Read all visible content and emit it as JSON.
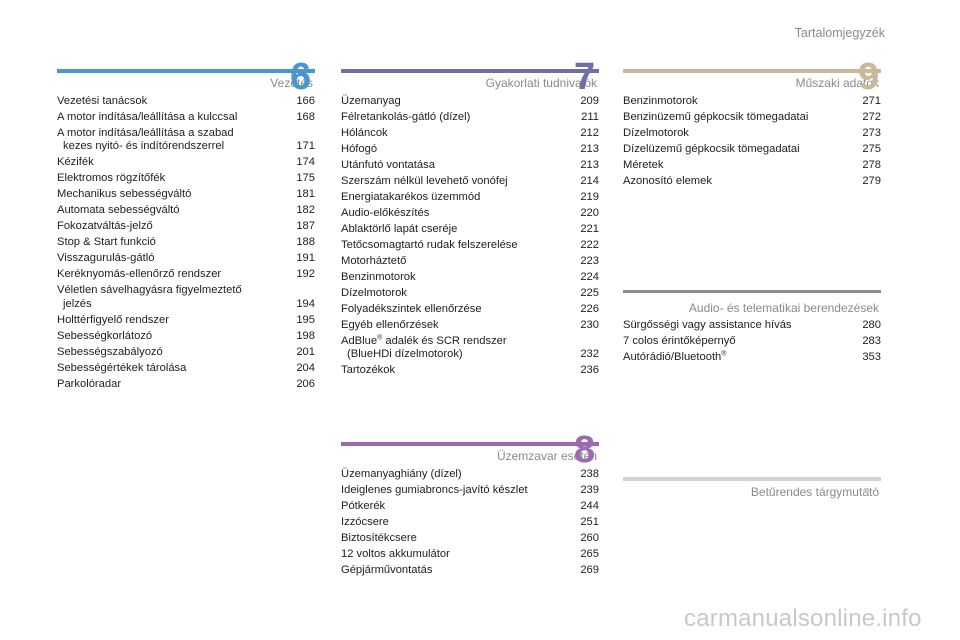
{
  "header": {
    "title": "Tartalomjegyzék"
  },
  "sections": {
    "s6": {
      "title": "Vezetés",
      "number": "6",
      "color": "#4a97cf",
      "items": [
        {
          "lines": [
            "Vezetési tanácsok"
          ],
          "page": "166"
        },
        {
          "lines": [
            "A motor indítása/leállítása a kulccsal"
          ],
          "page": "168"
        },
        {
          "lines": [
            "A motor indítása/leállítása a szabad",
            "kezes nyitó- és indítórendszerrel"
          ],
          "page": "171"
        },
        {
          "lines": [
            "Kézifék"
          ],
          "page": "174"
        },
        {
          "lines": [
            "Elektromos rögzítőfék"
          ],
          "page": "175"
        },
        {
          "lines": [
            "Mechanikus sebességváltó"
          ],
          "page": "181"
        },
        {
          "lines": [
            "Automata sebességváltó"
          ],
          "page": "182"
        },
        {
          "lines": [
            "Fokozatváltás-jelző"
          ],
          "page": "187"
        },
        {
          "lines": [
            "Stop & Start funkció"
          ],
          "page": "188"
        },
        {
          "lines": [
            "Visszagurulás-gátló"
          ],
          "page": "191"
        },
        {
          "lines": [
            "Keréknyomás-ellenőrző rendszer"
          ],
          "page": "192"
        },
        {
          "lines": [
            "Véletlen sávelhagyásra figyelmeztető",
            "jelzés"
          ],
          "page": "194"
        },
        {
          "lines": [
            "Holttérfigyelő rendszer"
          ],
          "page": "195"
        },
        {
          "lines": [
            "Sebességkorlátozó"
          ],
          "page": "198"
        },
        {
          "lines": [
            "Sebességszabályozó"
          ],
          "page": "201"
        },
        {
          "lines": [
            "Sebességértékek tárolása"
          ],
          "page": "204"
        },
        {
          "lines": [
            "Parkolóradar"
          ],
          "page": "206"
        }
      ]
    },
    "s7": {
      "title": "Gyakorlati tudnivalók",
      "number": "7",
      "color": "#6e6ea8",
      "items": [
        {
          "lines": [
            "Üzemanyag"
          ],
          "page": "209"
        },
        {
          "lines": [
            "Félretankolás-gátló (dízel)"
          ],
          "page": "211"
        },
        {
          "lines": [
            "Hóláncok"
          ],
          "page": "212"
        },
        {
          "lines": [
            "Hófogó"
          ],
          "page": "213"
        },
        {
          "lines": [
            "Utánfutó vontatása"
          ],
          "page": "213"
        },
        {
          "lines": [
            "Szerszám nélkül levehető vonófej"
          ],
          "page": "214"
        },
        {
          "lines": [
            "Energiatakarékos üzemmód"
          ],
          "page": "219"
        },
        {
          "lines": [
            "Audio-előkészítés"
          ],
          "page": "220"
        },
        {
          "lines": [
            "Ablaktörlő lapát cseréje"
          ],
          "page": "221"
        },
        {
          "lines": [
            "Tetőcsomagtartó rudak felszerelése"
          ],
          "page": "222"
        },
        {
          "lines": [
            "Motorháztető"
          ],
          "page": "223"
        },
        {
          "lines": [
            "Benzinmotorok"
          ],
          "page": "224"
        },
        {
          "lines": [
            "Dízelmotorok"
          ],
          "page": "225"
        },
        {
          "lines": [
            "Folyadékszintek ellenőrzése"
          ],
          "page": "226"
        },
        {
          "lines": [
            "Egyéb ellenőrzések"
          ],
          "page": "230"
        },
        {
          "lines": [
            "AdBlue",
            " adalék és SCR rendszer",
            "(BlueHDi dízelmotorok)"
          ],
          "sup": "®",
          "page": "232"
        },
        {
          "lines": [
            "Tartozékok"
          ],
          "page": "236"
        }
      ]
    },
    "s8": {
      "title": "Üzemzavar esetén",
      "number": "8",
      "color": "#9a6bb0",
      "items": [
        {
          "lines": [
            "Üzemanyaghiány (dízel)"
          ],
          "page": "238"
        },
        {
          "lines": [
            "Ideiglenes gumiabroncs-javító készlet"
          ],
          "page": "239"
        },
        {
          "lines": [
            "Pótkerék"
          ],
          "page": "244"
        },
        {
          "lines": [
            "Izzócsere"
          ],
          "page": "251"
        },
        {
          "lines": [
            "Biztosítékcsere"
          ],
          "page": "260"
        },
        {
          "lines": [
            "12 voltos akkumulátor"
          ],
          "page": "265"
        },
        {
          "lines": [
            "Gépjárművontatás"
          ],
          "page": "269"
        }
      ]
    },
    "s9": {
      "title": "Műszaki adatok",
      "number": "9",
      "color": "#c9b89a",
      "items": [
        {
          "lines": [
            "Benzinmotorok"
          ],
          "page": "271"
        },
        {
          "lines": [
            "Benzinüzemű gépkocsik tömegadatai"
          ],
          "page": "272"
        },
        {
          "lines": [
            "Dízelmotorok"
          ],
          "page": "273"
        },
        {
          "lines": [
            "Dízelüzemű gépkocsik tömegadatai"
          ],
          "page": "275"
        },
        {
          "lines": [
            "Méretek"
          ],
          "page": "278"
        },
        {
          "lines": [
            "Azonosító elemek"
          ],
          "page": "279"
        }
      ]
    },
    "audio": {
      "title": "Audio- és telematikai berendezések",
      "color": "#8c8c8c",
      "items": [
        {
          "lines": [
            "Sürgősségi vagy assistance hívás"
          ],
          "page": "280"
        },
        {
          "lines": [
            "7 colos érintőképernyő"
          ],
          "page": "283"
        },
        {
          "lines": [
            "Autórádió/Bluetooth"
          ],
          "sup": "®",
          "page": "353"
        }
      ]
    },
    "index": {
      "title": "Betűrendes tárgymutató",
      "color": "#d2d2d2"
    }
  },
  "watermark": "carmanualsonline.info"
}
